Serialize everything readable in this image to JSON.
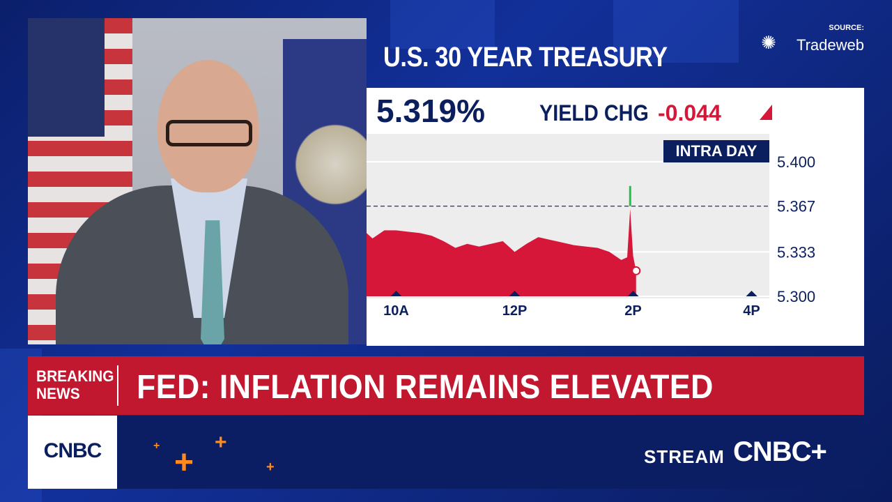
{
  "header": {
    "title": "U.S. 30 YEAR TREASURY",
    "source_label": "SOURCE:",
    "source_brand": "Tradeweb"
  },
  "quote": {
    "yield": "5.319%",
    "change_label": "YIELD CHG",
    "change_value": "-0.044"
  },
  "chart_data": {
    "type": "area",
    "badge": "INTRA DAY",
    "x_ticks": [
      "10A",
      "12P",
      "2P",
      "4P"
    ],
    "y_ticks": [
      "5.400",
      "5.367",
      "5.333",
      "5.300"
    ],
    "ylim": [
      5.3,
      5.4
    ],
    "reference_line": 5.367,
    "series": [
      {
        "x_hours": [
          9.5,
          9.6,
          9.8,
          10.0,
          10.2,
          10.4,
          10.6,
          10.8,
          11.0,
          11.2,
          11.4,
          11.6,
          11.8,
          12.0,
          12.2,
          12.4,
          12.6,
          12.8,
          13.0,
          13.2,
          13.4,
          13.6,
          13.8,
          13.9,
          13.95,
          14.0,
          14.05
        ],
        "values": [
          5.347,
          5.343,
          5.349,
          5.349,
          5.348,
          5.347,
          5.345,
          5.341,
          5.336,
          5.339,
          5.337,
          5.339,
          5.341,
          5.333,
          5.339,
          5.344,
          5.342,
          5.34,
          5.338,
          5.337,
          5.336,
          5.333,
          5.327,
          5.329,
          5.365,
          5.33,
          5.319
        ]
      }
    ],
    "spike_high": 5.382,
    "colors": {
      "area": "#d6173a",
      "spike_up": "#22c04a",
      "ref_line": "#0b1f5e"
    }
  },
  "breaking": {
    "label_line1": "BREAKING",
    "label_line2": "NEWS",
    "headline": "FED: INFLATION REMAINS ELEVATED"
  },
  "footer": {
    "network": "CNBC",
    "stream_label": "STREAM",
    "stream_brand": "CNBC+"
  }
}
